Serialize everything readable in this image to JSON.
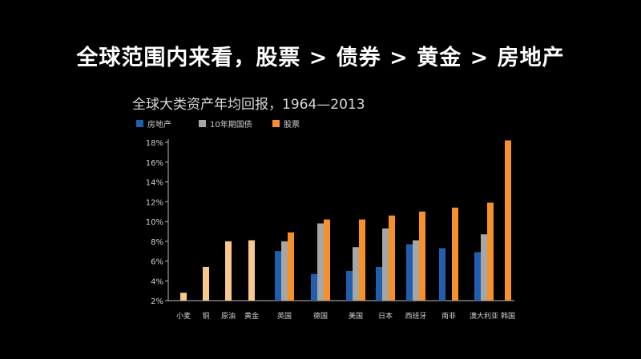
{
  "headline": "全球范围内来看，股票 > 债券 > 黄金 > 房地产",
  "chart_data": {
    "type": "bar",
    "title": "全球大类资产年均回报，1964—2013",
    "xlabel": "",
    "ylabel": "",
    "ylim": [
      2,
      18
    ],
    "yticks": [
      "2%",
      "4%",
      "6%",
      "8%",
      "10%",
      "12%",
      "14%",
      "16%",
      "18%"
    ],
    "grid": false,
    "legend_position": "top-left",
    "series_colors": {
      "real_estate": "#1f5fae",
      "bonds": "#a6a6a6",
      "stocks": "#f5902b",
      "commodity": "#f7c98a"
    },
    "series": [
      {
        "key": "real_estate",
        "name": "房地产"
      },
      {
        "key": "bonds",
        "name": "10年期国债"
      },
      {
        "key": "stocks",
        "name": "股票"
      }
    ],
    "groups": [
      {
        "label": "小麦",
        "commodity": 2.8
      },
      {
        "label": "铜",
        "commodity": 5.4
      },
      {
        "label": "原油",
        "commodity": 8.0
      },
      {
        "label": "黄金",
        "commodity": 8.1
      },
      {
        "label": "英国",
        "real_estate": 7.0,
        "bonds": 8.0,
        "stocks": 8.9
      },
      {
        "label": "德国",
        "real_estate": 4.7,
        "bonds": 9.8,
        "stocks": 10.2
      },
      {
        "label": "美国",
        "real_estate": 5.0,
        "bonds": 7.4,
        "stocks": 10.2
      },
      {
        "label": "日本",
        "real_estate": 5.4,
        "bonds": 9.3,
        "stocks": 10.6
      },
      {
        "label": "西班牙",
        "real_estate": 7.7,
        "bonds": 8.1,
        "stocks": 11.0
      },
      {
        "label": "南非",
        "real_estate": 7.3,
        "stocks": 11.4
      },
      {
        "label": "澳大利亚",
        "real_estate": 6.9,
        "bonds": 8.7,
        "stocks": 11.9
      },
      {
        "label": "韩国",
        "stocks": 18.2
      }
    ]
  }
}
